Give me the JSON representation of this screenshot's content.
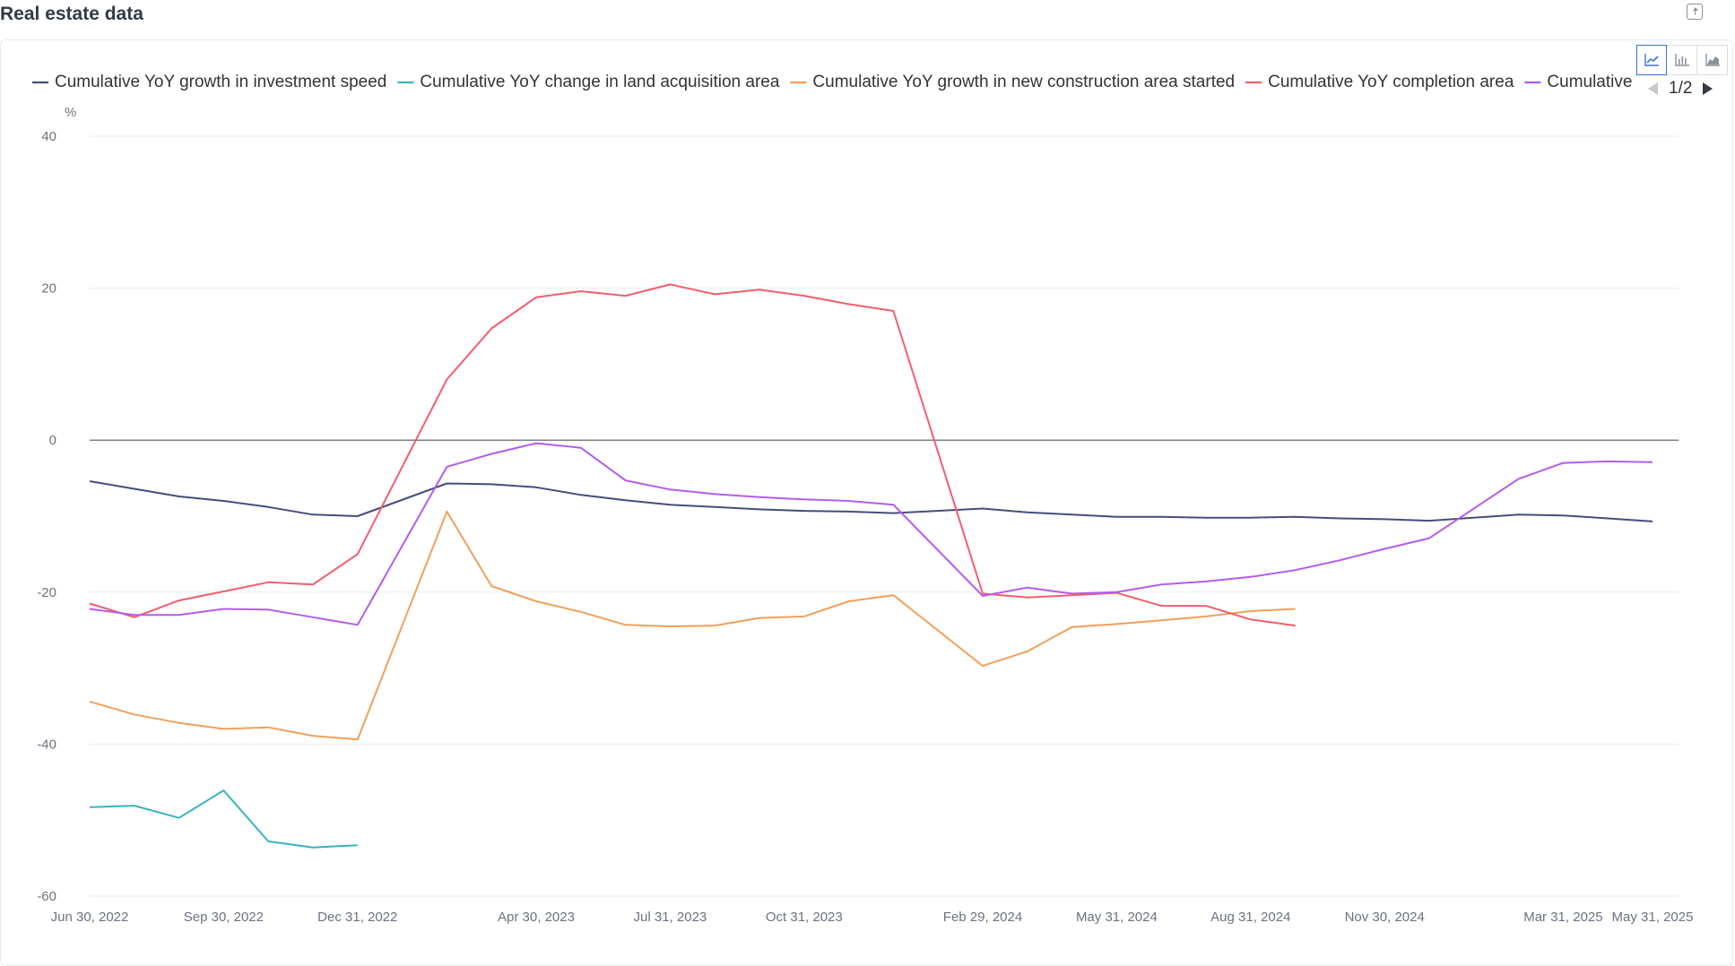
{
  "header": {
    "title": "Real estate data"
  },
  "legend": {
    "page_indicator": "1/2"
  },
  "colors": {
    "investment": "#464c7d",
    "land": "#36b3c3",
    "construction": "#f0a05a",
    "completion": "#f25e6b",
    "sales": "#b35cf0",
    "grid": "#ebedf0",
    "zero_line": "#555555",
    "accent": "#3d6fd8"
  },
  "chart_data": {
    "type": "line",
    "title": "",
    "ylabel": "%",
    "ylim": [
      -60,
      40
    ],
    "yticks": [
      -60,
      -40,
      -20,
      0,
      20,
      40
    ],
    "grid": true,
    "legend_position": "top",
    "xtick_labels": [
      "Jun 30, 2022",
      "Sep 30, 2022",
      "Dec 31, 2022",
      "Apr 30, 2023",
      "Jul 31, 2023",
      "Oct 31, 2023",
      "Feb 29, 2024",
      "May 31, 2024",
      "Aug 31, 2024",
      "Nov 30, 2024",
      "Mar 31, 2025",
      "May 31, 2025"
    ],
    "x": [
      "2022-06",
      "2022-07",
      "2022-08",
      "2022-09",
      "2022-10",
      "2022-11",
      "2022-12",
      "2023-02",
      "2023-03",
      "2023-04",
      "2023-05",
      "2023-06",
      "2023-07",
      "2023-08",
      "2023-09",
      "2023-10",
      "2023-11",
      "2023-12",
      "2024-02",
      "2024-03",
      "2024-04",
      "2024-05",
      "2024-06",
      "2024-07",
      "2024-08",
      "2024-09",
      "2024-10",
      "2024-11",
      "2024-12",
      "2025-02",
      "2025-03",
      "2025-04",
      "2025-05"
    ],
    "series": [
      {
        "name": "Cumulative YoY growth in investment speed",
        "legend_label": "Cumulative YoY growth in investment speed",
        "color_key": "investment",
        "values": [
          -5.4,
          -6.4,
          -7.4,
          -8.0,
          -8.8,
          -9.8,
          -10.0,
          -5.7,
          -5.8,
          -6.2,
          -7.2,
          -7.9,
          -8.5,
          -8.8,
          -9.1,
          -9.3,
          -9.4,
          -9.6,
          -9.0,
          -9.5,
          -9.8,
          -10.1,
          -10.1,
          -10.2,
          -10.2,
          -10.1,
          -10.3,
          -10.4,
          -10.6,
          -9.8,
          -9.9,
          -10.3,
          -10.7
        ]
      },
      {
        "name": "Cumulative YoY change in land acquisition area",
        "legend_label": "Cumulative YoY change in land acquisition area",
        "color_key": "land",
        "values": [
          -48.3,
          -48.1,
          -49.7,
          -46.1,
          -52.8,
          -53.6,
          -53.3,
          null,
          null,
          null,
          null,
          null,
          null,
          null,
          null,
          null,
          null,
          null,
          null,
          null,
          null,
          null,
          null,
          null,
          null,
          null,
          null,
          null,
          null,
          null,
          null,
          null,
          null
        ]
      },
      {
        "name": "Cumulative YoY growth in new construction area started",
        "legend_label": "Cumulative YoY growth in new construction area started",
        "color_key": "construction",
        "values": [
          -34.4,
          -36.1,
          -37.2,
          -38.0,
          -37.8,
          -38.9,
          -39.4,
          -9.4,
          -19.2,
          -21.2,
          -22.6,
          -24.3,
          -24.5,
          -24.4,
          -23.4,
          -23.2,
          -21.2,
          -20.4,
          -29.7,
          -27.8,
          -24.6,
          -24.2,
          -23.7,
          -23.2,
          -22.5,
          -22.2,
          null,
          null,
          null,
          null,
          null,
          null,
          null
        ]
      },
      {
        "name": "Cumulative YoY completion area",
        "legend_label": "Cumulative YoY completion area",
        "color_key": "completion",
        "values": [
          -21.5,
          -23.3,
          -21.1,
          -19.9,
          -18.7,
          -19.0,
          -15.0,
          8.0,
          14.7,
          18.8,
          19.6,
          19.0,
          20.5,
          19.2,
          19.8,
          19.0,
          17.9,
          17.0,
          -20.2,
          -20.7,
          -20.4,
          -20.1,
          -21.8,
          -21.8,
          -23.6,
          -24.4,
          null,
          null,
          null,
          null,
          null,
          null,
          null
        ]
      },
      {
        "name": "Cumulative growth in sales",
        "legend_label": "Cumulative g",
        "color_key": "sales",
        "values": [
          -22.2,
          -23.0,
          -23.0,
          -22.2,
          -22.3,
          -23.3,
          -24.3,
          -3.5,
          -1.8,
          -0.4,
          -1.0,
          -5.3,
          -6.5,
          -7.1,
          -7.5,
          -7.8,
          -8.0,
          -8.5,
          -20.5,
          -19.4,
          -20.2,
          -20.0,
          -19.0,
          -18.6,
          -18.0,
          -17.1,
          -15.8,
          -14.3,
          -12.9,
          -5.1,
          -3.0,
          -2.8,
          -2.9
        ]
      }
    ]
  }
}
